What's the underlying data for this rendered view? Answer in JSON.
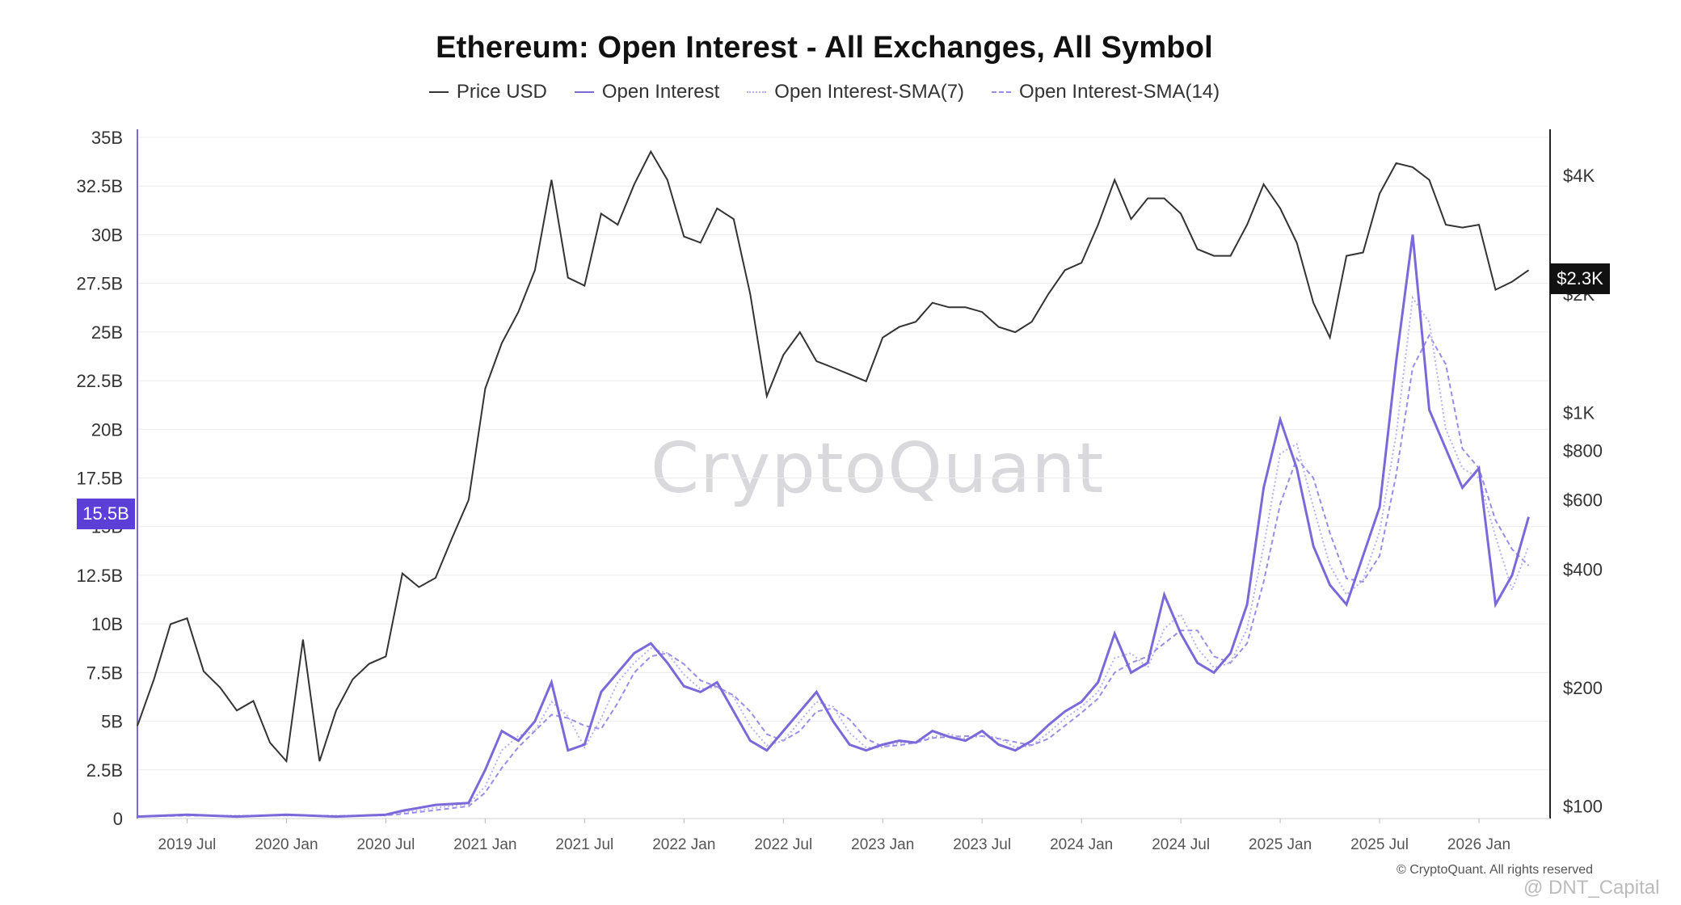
{
  "chart_data": {
    "type": "line",
    "title": "Ethereum: Open Interest - All Exchanges, All Symbol",
    "legend": [
      {
        "label": "Price USD",
        "color": "#333333",
        "style": "solid"
      },
      {
        "label": "Open Interest",
        "color": "#7b68d9",
        "style": "solid"
      },
      {
        "label": "Open Interest-SMA(7)",
        "color": "#b9b0ee",
        "style": "dotted"
      },
      {
        "label": "Open Interest-SMA(14)",
        "color": "#9a8de6",
        "style": "dashed"
      }
    ],
    "legend_position": "top-center",
    "x_range": [
      "2019-04",
      "2026-05"
    ],
    "x_ticks": [
      "2019 Jul",
      "2020 Jan",
      "2020 Jul",
      "2021 Jan",
      "2021 Jul",
      "2022 Jan",
      "2022 Jul",
      "2023 Jan",
      "2023 Jul",
      "2024 Jan",
      "2024 Jul",
      "2025 Jan",
      "2025 Jul",
      "2026 Jan"
    ],
    "y_left": {
      "ticks": [
        "0",
        "2.5B",
        "5B",
        "7.5B",
        "10B",
        "12.5B",
        "15B",
        "17.5B",
        "20B",
        "22.5B",
        "25B",
        "27.5B",
        "30B",
        "32.5B",
        "35B"
      ],
      "range": [
        0,
        35
      ]
    },
    "y_right": {
      "scale": "log",
      "ticks": [
        "$100",
        "$200",
        "$400",
        "$600",
        "$800",
        "$1K",
        "$2K",
        "$4K"
      ],
      "tick_values": [
        100,
        200,
        400,
        600,
        800,
        1000,
        2000,
        4000
      ],
      "range": [
        93,
        5000
      ]
    },
    "current_markers": {
      "open_interest": "15.5B",
      "price": "$2.3K"
    },
    "grid": "horizontal",
    "series": [
      {
        "name": "Price USD",
        "axis": "right",
        "color": "#333333",
        "x": [
          "2019-04",
          "2019-05",
          "2019-06",
          "2019-07",
          "2019-08",
          "2019-09",
          "2019-10",
          "2019-11",
          "2019-12",
          "2020-01",
          "2020-02",
          "2020-03",
          "2020-04",
          "2020-05",
          "2020-06",
          "2020-07",
          "2020-08",
          "2020-09",
          "2020-10",
          "2020-11",
          "2020-12",
          "2021-01",
          "2021-02",
          "2021-03",
          "2021-04",
          "2021-05",
          "2021-06",
          "2021-07",
          "2021-08",
          "2021-09",
          "2021-10",
          "2021-11",
          "2021-12",
          "2022-01",
          "2022-02",
          "2022-03",
          "2022-04",
          "2022-05",
          "2022-06",
          "2022-07",
          "2022-08",
          "2022-09",
          "2022-10",
          "2022-11",
          "2022-12",
          "2023-01",
          "2023-02",
          "2023-03",
          "2023-04",
          "2023-05",
          "2023-06",
          "2023-07",
          "2023-08",
          "2023-09",
          "2023-10",
          "2023-11",
          "2023-12",
          "2024-01",
          "2024-02",
          "2024-03",
          "2024-04",
          "2024-05",
          "2024-06",
          "2024-07",
          "2024-08",
          "2024-09",
          "2024-10",
          "2024-11",
          "2024-12",
          "2025-01",
          "2025-02",
          "2025-03",
          "2025-04",
          "2025-05",
          "2025-06",
          "2025-07",
          "2025-08",
          "2025-09",
          "2025-10",
          "2025-11",
          "2025-12",
          "2026-01",
          "2026-02",
          "2026-03",
          "2026-04"
        ],
        "values": [
          160,
          210,
          290,
          300,
          220,
          200,
          175,
          185,
          145,
          130,
          265,
          130,
          175,
          210,
          230,
          240,
          390,
          360,
          380,
          480,
          600,
          1150,
          1500,
          1800,
          2300,
          3900,
          2200,
          2100,
          3200,
          3000,
          3800,
          4600,
          3900,
          2800,
          2700,
          3300,
          3100,
          2000,
          1100,
          1400,
          1600,
          1350,
          1300,
          1250,
          1200,
          1550,
          1650,
          1700,
          1900,
          1850,
          1850,
          1800,
          1650,
          1600,
          1700,
          2000,
          2300,
          2400,
          3000,
          3900,
          3100,
          3500,
          3500,
          3200,
          2600,
          2500,
          2500,
          3000,
          3800,
          3300,
          2700,
          1900,
          1550,
          2500,
          2550,
          3600,
          4300,
          4200,
          3900,
          3000,
          2950,
          3000,
          2050,
          2150,
          2300
        ]
      },
      {
        "name": "Open Interest",
        "axis": "left",
        "unit": "B USD",
        "color": "#7b68d9",
        "x": [
          "2019-04",
          "2019-07",
          "2019-10",
          "2020-01",
          "2020-04",
          "2020-07",
          "2020-08",
          "2020-10",
          "2020-12",
          "2021-01",
          "2021-02",
          "2021-03",
          "2021-04",
          "2021-05",
          "2021-06",
          "2021-07",
          "2021-08",
          "2021-09",
          "2021-10",
          "2021-11",
          "2021-12",
          "2022-01",
          "2022-02",
          "2022-03",
          "2022-04",
          "2022-05",
          "2022-06",
          "2022-07",
          "2022-08",
          "2022-09",
          "2022-10",
          "2022-11",
          "2022-12",
          "2023-01",
          "2023-02",
          "2023-03",
          "2023-04",
          "2023-05",
          "2023-06",
          "2023-07",
          "2023-08",
          "2023-09",
          "2023-10",
          "2023-11",
          "2023-12",
          "2024-01",
          "2024-02",
          "2024-03",
          "2024-04",
          "2024-05",
          "2024-06",
          "2024-07",
          "2024-08",
          "2024-09",
          "2024-10",
          "2024-11",
          "2024-12",
          "2025-01",
          "2025-02",
          "2025-03",
          "2025-04",
          "2025-05",
          "2025-06",
          "2025-07",
          "2025-08",
          "2025-09",
          "2025-10",
          "2025-11",
          "2025-12",
          "2026-01",
          "2026-02",
          "2026-03",
          "2026-04"
        ],
        "values": [
          0.1,
          0.2,
          0.1,
          0.2,
          0.1,
          0.2,
          0.4,
          0.7,
          0.8,
          2.5,
          4.5,
          4.0,
          5.0,
          7.0,
          3.5,
          3.8,
          6.5,
          7.5,
          8.5,
          9.0,
          8.0,
          6.8,
          6.5,
          7.0,
          5.5,
          4.0,
          3.5,
          4.5,
          5.5,
          6.5,
          5.0,
          3.8,
          3.5,
          3.8,
          4.0,
          3.9,
          4.5,
          4.2,
          4.0,
          4.5,
          3.8,
          3.5,
          4.0,
          4.8,
          5.5,
          6.0,
          7.0,
          9.5,
          7.5,
          8.0,
          11.5,
          9.5,
          8.0,
          7.5,
          8.5,
          11.0,
          17.0,
          20.5,
          18.0,
          14.0,
          12.0,
          11.0,
          13.5,
          16.0,
          23.5,
          30.0,
          21.0,
          19.0,
          17.0,
          18.0,
          11.0,
          12.5,
          15.5
        ]
      },
      {
        "name": "Open Interest-SMA(7)",
        "axis": "left",
        "unit": "B USD",
        "color": "#b9b0ee",
        "derived_from": "Open Interest",
        "window": 7
      },
      {
        "name": "Open Interest-SMA(14)",
        "axis": "left",
        "unit": "B USD",
        "color": "#9a8de6",
        "derived_from": "Open Interest",
        "window": 14
      }
    ]
  },
  "watermark": "CryptoQuant",
  "copyright": "© CryptoQuant. All rights reserved",
  "source_tag": "@ DNT_Capital"
}
